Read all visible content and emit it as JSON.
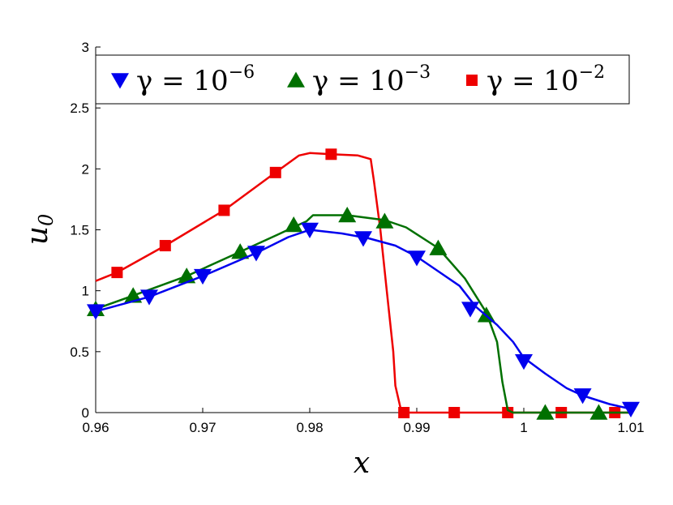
{
  "chart_data": {
    "type": "line",
    "title": "",
    "xlabel": "x",
    "ylabel_main": "u",
    "ylabel_sub": "0",
    "xlim": [
      0.96,
      1.01
    ],
    "ylim": [
      0,
      3
    ],
    "xticks": [
      0.96,
      0.97,
      0.98,
      0.99,
      1.0,
      1.01
    ],
    "xtick_labels": [
      "0.96",
      "0.97",
      "0.98",
      "0.99",
      "1",
      "1.01"
    ],
    "yticks": [
      0,
      0.5,
      1,
      1.5,
      2,
      2.5,
      3
    ],
    "ytick_labels": [
      "0",
      "0.5",
      "1",
      "1.5",
      "2",
      "2.5",
      "3"
    ],
    "grid": false,
    "legend_position": "top",
    "series": [
      {
        "legend_main": "γ = 10",
        "legend_exp": "−6",
        "color": "#0000ee",
        "marker": "triangle-down",
        "line": [
          [
            0.96,
            0.83
          ],
          [
            0.965,
            0.95
          ],
          [
            0.97,
            1.12
          ],
          [
            0.975,
            1.31
          ],
          [
            0.978,
            1.44
          ],
          [
            0.98,
            1.5
          ],
          [
            0.983,
            1.47
          ],
          [
            0.9855,
            1.43
          ],
          [
            0.988,
            1.37
          ],
          [
            0.99,
            1.28
          ],
          [
            0.992,
            1.16
          ],
          [
            0.994,
            1.04
          ],
          [
            0.9955,
            0.87
          ],
          [
            0.9975,
            0.72
          ],
          [
            0.999,
            0.58
          ],
          [
            1.0,
            0.45
          ],
          [
            1.002,
            0.32
          ],
          [
            1.004,
            0.2
          ],
          [
            1.0055,
            0.14
          ],
          [
            1.008,
            0.07
          ],
          [
            1.01,
            0.03
          ]
        ],
        "markers": [
          [
            0.96,
            0.83
          ],
          [
            0.965,
            0.95
          ],
          [
            0.97,
            1.12
          ],
          [
            0.975,
            1.31
          ],
          [
            0.98,
            1.5
          ],
          [
            0.985,
            1.43
          ],
          [
            0.99,
            1.27
          ],
          [
            0.995,
            0.85
          ],
          [
            1.0,
            0.42
          ],
          [
            1.0055,
            0.14
          ],
          [
            1.01,
            0.03
          ]
        ]
      },
      {
        "legend_main": "γ = 10",
        "legend_exp": "−3",
        "color": "#007000",
        "marker": "triangle-up",
        "line": [
          [
            0.96,
            0.85
          ],
          [
            0.9635,
            0.96
          ],
          [
            0.9685,
            1.12
          ],
          [
            0.9735,
            1.32
          ],
          [
            0.977,
            1.46
          ],
          [
            0.9787,
            1.53
          ],
          [
            0.9797,
            1.57
          ],
          [
            0.9803,
            1.62
          ],
          [
            0.9835,
            1.62
          ],
          [
            0.987,
            1.58
          ],
          [
            0.989,
            1.52
          ],
          [
            0.992,
            1.35
          ],
          [
            0.9945,
            1.1
          ],
          [
            0.9965,
            0.82
          ],
          [
            0.9975,
            0.58
          ],
          [
            0.998,
            0.25
          ],
          [
            0.9985,
            0.02
          ],
          [
            0.999,
            0
          ],
          [
            1.01,
            0
          ]
        ],
        "markers": [
          [
            0.96,
            0.85
          ],
          [
            0.9635,
            0.96
          ],
          [
            0.9685,
            1.12
          ],
          [
            0.9735,
            1.32
          ],
          [
            0.9785,
            1.54
          ],
          [
            0.9835,
            1.62
          ],
          [
            0.987,
            1.57
          ],
          [
            0.992,
            1.35
          ],
          [
            0.9965,
            0.8
          ],
          [
            1.002,
            0
          ],
          [
            1.007,
            0
          ]
        ]
      },
      {
        "legend_main": "γ = 10",
        "legend_exp": "−2",
        "color": "#ee0000",
        "marker": "square",
        "line": [
          [
            0.96,
            1.08
          ],
          [
            0.962,
            1.15
          ],
          [
            0.9665,
            1.37
          ],
          [
            0.972,
            1.66
          ],
          [
            0.9768,
            1.97
          ],
          [
            0.979,
            2.11
          ],
          [
            0.98,
            2.13
          ],
          [
            0.982,
            2.12
          ],
          [
            0.9845,
            2.11
          ],
          [
            0.9857,
            2.08
          ],
          [
            0.986,
            1.9
          ],
          [
            0.9866,
            1.5
          ],
          [
            0.9872,
            1.0
          ],
          [
            0.9878,
            0.5
          ],
          [
            0.988,
            0.22
          ],
          [
            0.9885,
            0.03
          ],
          [
            0.989,
            0
          ],
          [
            1.01,
            0
          ]
        ],
        "markers": [
          [
            0.962,
            1.15
          ],
          [
            0.9665,
            1.37
          ],
          [
            0.972,
            1.66
          ],
          [
            0.9768,
            1.97
          ],
          [
            0.982,
            2.12
          ],
          [
            0.9888,
            0
          ],
          [
            0.9935,
            0
          ],
          [
            0.9985,
            0
          ],
          [
            1.0035,
            0
          ],
          [
            1.0085,
            0
          ]
        ]
      }
    ]
  }
}
